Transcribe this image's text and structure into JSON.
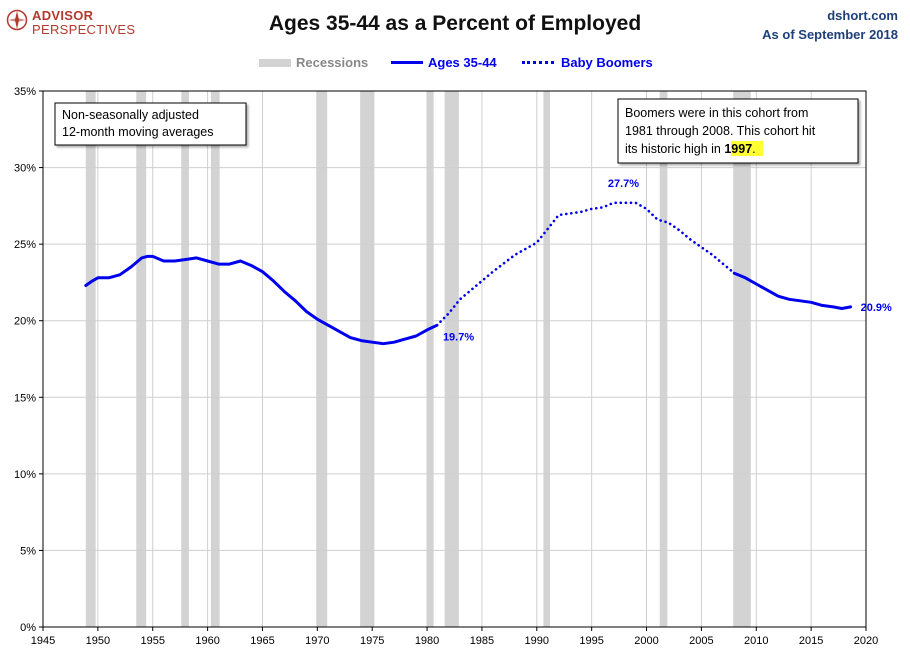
{
  "brand": {
    "line1": "ADVISOR",
    "line2": "PERSPECTIVES"
  },
  "source": "dshort.com",
  "as_of": "As of September 2018",
  "colors": {
    "series": "#0000ee",
    "recession": "#d3d3d3",
    "axis": "#000000",
    "grid": "#cfcfcf",
    "brand": "#b23a2e",
    "header_blue": "#1f3f7a",
    "highlight": "#ffff33"
  },
  "legend": {
    "recessions": "Recessions",
    "ages": "Ages 35-44",
    "boomers": "Baby Boomers"
  },
  "notes": {
    "left_line1": "Non-seasonally adjusted",
    "left_line2": "12-month moving averages",
    "right_line1": "Boomers were in this cohort from",
    "right_line2": "1981  through 2008.  This cohort hit",
    "right_line3_pre": "its historic high in ",
    "right_line3_year": "1997",
    "right_line3_post": "."
  },
  "chart_data": {
    "type": "line",
    "title": "Ages 35-44 as a Percent of Employed",
    "xlim": [
      1945,
      2020
    ],
    "ylim": [
      0,
      35
    ],
    "x_ticks": [
      1945,
      1950,
      1955,
      1960,
      1965,
      1970,
      1975,
      1980,
      1985,
      1990,
      1995,
      2000,
      2005,
      2010,
      2015,
      2020
    ],
    "y_ticks": [
      0,
      5,
      10,
      15,
      20,
      25,
      30,
      35
    ],
    "y_tick_labels": [
      "0%",
      "5%",
      "10%",
      "15%",
      "20%",
      "25%",
      "30%",
      "35%"
    ],
    "grid": true,
    "legend_position": "top-center",
    "recessions": [
      [
        1948.9,
        1949.8
      ],
      [
        1953.5,
        1954.4
      ],
      [
        1957.6,
        1958.3
      ],
      [
        1960.3,
        1961.1
      ],
      [
        1969.9,
        1970.9
      ],
      [
        1973.9,
        1975.2
      ],
      [
        1980.0,
        1980.6
      ],
      [
        1981.6,
        1982.9
      ],
      [
        1990.6,
        1991.2
      ],
      [
        2001.2,
        2001.9
      ],
      [
        2007.9,
        2009.5
      ]
    ],
    "series": [
      {
        "name": "Ages 35-44",
        "style": "solid",
        "x": [
          1948.9,
          1949.5,
          1950.0,
          1951.0,
          1952.0,
          1953.0,
          1954.0,
          1954.5,
          1955.0,
          1956.0,
          1957.0,
          1958.0,
          1959.0,
          1960.0,
          1961.0,
          1962.0,
          1963.0,
          1964.0,
          1965.0,
          1966.0,
          1967.0,
          1968.0,
          1969.0,
          1970.0,
          1971.0,
          1972.0,
          1973.0,
          1974.0,
          1975.0,
          1976.0,
          1977.0,
          1978.0,
          1979.0,
          1980.0,
          1980.9
        ],
        "y": [
          22.3,
          22.6,
          22.8,
          22.8,
          23.0,
          23.5,
          24.1,
          24.2,
          24.2,
          23.9,
          23.9,
          24.0,
          24.1,
          23.9,
          23.7,
          23.7,
          23.9,
          23.6,
          23.2,
          22.6,
          21.9,
          21.3,
          20.6,
          20.1,
          19.7,
          19.3,
          18.9,
          18.7,
          18.6,
          18.5,
          18.6,
          18.8,
          19.0,
          19.4,
          19.7
        ]
      },
      {
        "name": "Baby Boomers",
        "style": "dotted",
        "x": [
          1980.9,
          1982.0,
          1983.0,
          1984.0,
          1986.0,
          1988.0,
          1990.0,
          1991.0,
          1992.0,
          1993.0,
          1994.0,
          1995.0,
          1996.0,
          1997.0,
          1998.0,
          1999.0,
          2000.0,
          2001.0,
          2002.0,
          2003.0,
          2004.0,
          2005.0,
          2006.0,
          2007.0,
          2008.0
        ],
        "y": [
          19.7,
          20.5,
          21.4,
          22.0,
          23.2,
          24.3,
          25.1,
          26.0,
          26.9,
          27.0,
          27.1,
          27.3,
          27.4,
          27.7,
          27.7,
          27.7,
          27.3,
          26.6,
          26.4,
          25.9,
          25.3,
          24.8,
          24.3,
          23.7,
          23.1
        ]
      },
      {
        "name": "Ages 35-44",
        "style": "solid",
        "x": [
          2008.0,
          2009.0,
          2010.0,
          2011.0,
          2012.0,
          2013.0,
          2014.0,
          2015.0,
          2016.0,
          2017.0,
          2017.8,
          2018.6
        ],
        "y": [
          23.1,
          22.8,
          22.4,
          22.0,
          21.6,
          21.4,
          21.3,
          21.2,
          21.0,
          20.9,
          20.8,
          20.9
        ]
      }
    ],
    "annotations": [
      {
        "x": 1980.9,
        "y": 19.7,
        "text": "19.7%"
      },
      {
        "x": 1997.9,
        "y": 27.7,
        "text": "27.7%"
      },
      {
        "x": 2018.6,
        "y": 20.9,
        "text": "20.9%"
      }
    ]
  }
}
